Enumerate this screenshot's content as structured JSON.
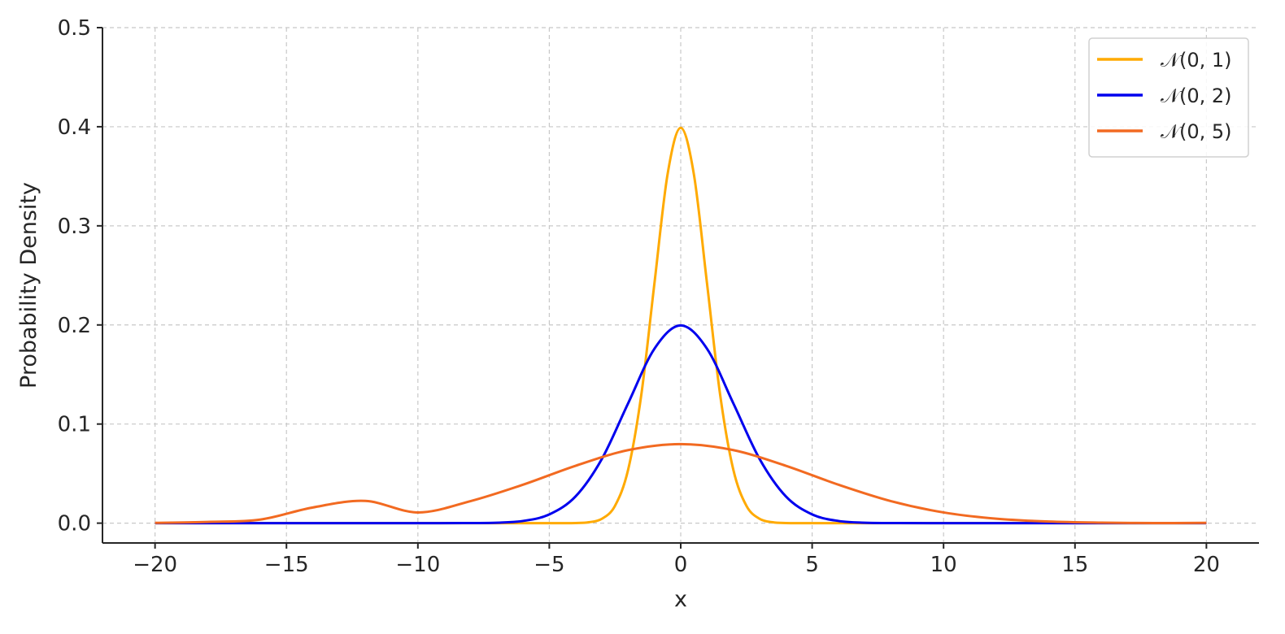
{
  "chart_data": {
    "type": "line",
    "title": "",
    "xlabel": "x",
    "ylabel": "Probability Density",
    "xlim": [
      -22,
      22
    ],
    "ylim": [
      -0.02,
      0.5
    ],
    "xticks": [
      -20,
      -15,
      -10,
      -5,
      0,
      5,
      10,
      15,
      20
    ],
    "xtick_labels": [
      "−20",
      "−15",
      "−10",
      "−5",
      "0",
      "5",
      "10",
      "15",
      "20"
    ],
    "yticks": [
      0.0,
      0.1,
      0.2,
      0.3,
      0.4,
      0.5
    ],
    "ytick_labels": [
      "0.0",
      "0.1",
      "0.2",
      "0.3",
      "0.4",
      "0.5"
    ],
    "grid": true,
    "legend_position": "top-right",
    "series": [
      {
        "name": "𝒩(0, 1)",
        "color": "#FFAA00",
        "x": [
          -20,
          -6,
          -5,
          -4,
          -3.5,
          -3,
          -2.5,
          -2,
          -1.5,
          -1,
          -0.5,
          0,
          0.5,
          1,
          1.5,
          2,
          2.5,
          3,
          3.5,
          4,
          5,
          6,
          20
        ],
        "y": [
          0.0,
          0.0,
          0.0,
          0.0001,
          0.0009,
          0.0044,
          0.0175,
          0.054,
          0.1295,
          0.242,
          0.3521,
          0.3989,
          0.3521,
          0.242,
          0.1295,
          0.054,
          0.0175,
          0.0044,
          0.0009,
          0.0001,
          0.0,
          0.0,
          0.0
        ]
      },
      {
        "name": "𝒩(0, 2)",
        "color": "#0000EE",
        "x": [
          -20,
          -10,
          -8,
          -7,
          -6,
          -5,
          -4,
          -3,
          -2,
          -1,
          0,
          1,
          2,
          3,
          4,
          5,
          6,
          7,
          8,
          10,
          20
        ],
        "y": [
          0.0,
          0.0,
          0.0001,
          0.0004,
          0.0022,
          0.0088,
          0.027,
          0.0648,
          0.121,
          0.176,
          0.1995,
          0.176,
          0.121,
          0.0648,
          0.027,
          0.0088,
          0.0022,
          0.0004,
          0.0001,
          0.0,
          0.0
        ]
      },
      {
        "name": "𝒩(0, 5)",
        "color": "#F26A21",
        "x": [
          -20,
          -18,
          -16,
          -14,
          -12,
          -10,
          -8,
          -6,
          -4,
          -2,
          0,
          2,
          4,
          6,
          8,
          10,
          12,
          14,
          16,
          18,
          20
        ],
        "y": [
          0.0003,
          0.0012,
          0.0036,
          0.0158,
          0.0224,
          0.0108,
          0.0222,
          0.0388,
          0.0579,
          0.0737,
          0.0798,
          0.0737,
          0.0579,
          0.0388,
          0.0222,
          0.0108,
          0.0045,
          0.0016,
          0.0005,
          0.0001,
          0.0003
        ]
      }
    ]
  }
}
